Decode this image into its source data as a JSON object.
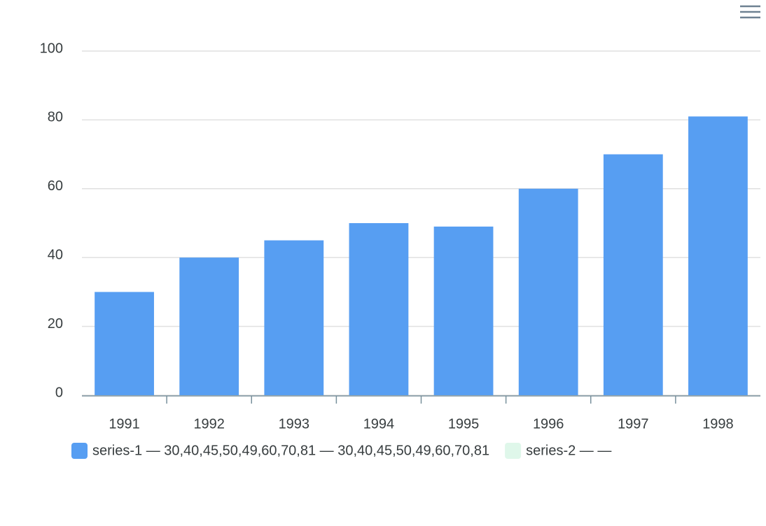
{
  "chart_data": {
    "type": "bar",
    "categories": [
      "1991",
      "1992",
      "1993",
      "1994",
      "1995",
      "1996",
      "1997",
      "1998"
    ],
    "series": [
      {
        "name": "series-1 — 30,40,45,50,49,60,70,81 — 30,40,45,50,49,60,70,81",
        "color": "#579ef2",
        "values": [
          30,
          40,
          45,
          50,
          49,
          60,
          70,
          81
        ]
      },
      {
        "name": "series-2 — —",
        "color": "#dff7ea",
        "values": [
          null,
          null,
          null,
          null,
          null,
          null,
          null,
          null
        ],
        "hidden": true
      }
    ],
    "ylim": [
      0,
      100
    ],
    "yticks": [
      0,
      20,
      40,
      60,
      80,
      100
    ],
    "grid": true,
    "legend": "bottom"
  }
}
